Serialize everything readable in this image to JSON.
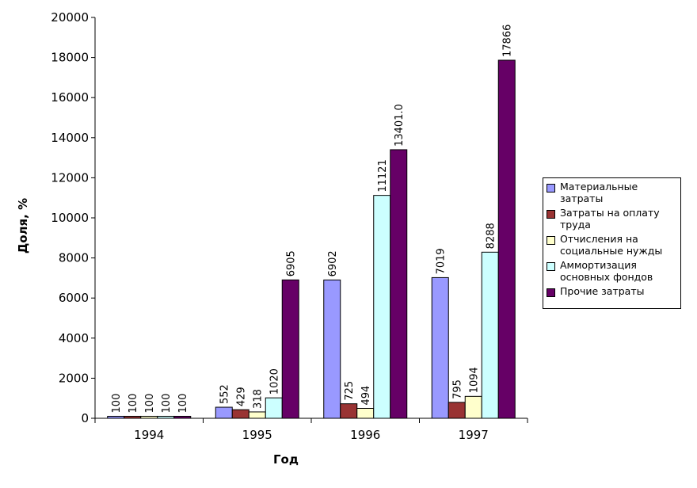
{
  "chart_data": {
    "type": "bar",
    "categories": [
      "1994",
      "1995",
      "1996",
      "1997"
    ],
    "series": [
      {
        "name": "Материальные затраты",
        "color": "#9999ff",
        "values": [
          100,
          552,
          6902,
          7019
        ],
        "labels": [
          "100",
          "552",
          "6902",
          "7019"
        ]
      },
      {
        "name": "Затраты на оплату труда",
        "color": "#993333",
        "values": [
          100,
          429,
          725,
          795
        ],
        "labels": [
          "100",
          "429",
          "725",
          "795"
        ]
      },
      {
        "name": "Отчисления на социальные нужды",
        "color": "#ffffcc",
        "values": [
          100,
          318,
          494,
          1094
        ],
        "labels": [
          "100",
          "318",
          "494",
          "1094"
        ]
      },
      {
        "name": "Аммортизация основных фондов",
        "color": "#ccffff",
        "values": [
          100,
          1020,
          11121,
          8288
        ],
        "labels": [
          "100",
          "1020",
          "11121",
          "8288"
        ]
      },
      {
        "name": "Прочие затраты",
        "color": "#660066",
        "values": [
          100,
          6905,
          13401.0,
          17866
        ],
        "labels": [
          "100",
          "6905",
          "13401.0",
          "17866"
        ]
      }
    ],
    "xlabel": "Год",
    "ylabel": "Доля, %",
    "ylim": [
      0,
      20000
    ],
    "yticks": [
      "0",
      "2000",
      "4000",
      "6000",
      "8000",
      "10000",
      "12000",
      "14000",
      "16000",
      "18000",
      "20000"
    ],
    "grid": false,
    "legend_position": "right"
  }
}
